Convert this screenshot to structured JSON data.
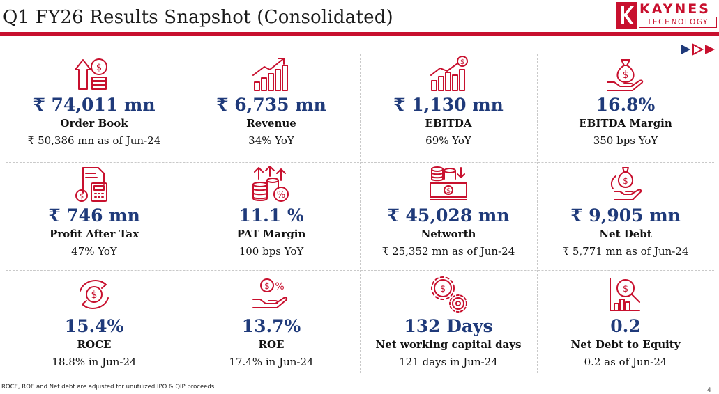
{
  "header": {
    "title": "Q1 FY26 Results Snapshot (Consolidated)",
    "logo_line1": "KAYNES",
    "logo_line2": "TECHNOLOGY"
  },
  "colors": {
    "accent": "#c8102e",
    "value": "#1f3a7a"
  },
  "metrics": [
    {
      "icon": "order-book-icon",
      "value": "₹ 74,011 mn",
      "label": "Order Book",
      "sub": "₹ 50,386 mn as of Jun-24"
    },
    {
      "icon": "revenue-growth-icon",
      "value": "₹ 6,735 mn",
      "label": "Revenue",
      "sub": "34% YoY"
    },
    {
      "icon": "ebitda-chart-icon",
      "value": "₹ 1,130 mn",
      "label": "EBITDA",
      "sub": "69% YoY"
    },
    {
      "icon": "money-bag-hand-icon",
      "value": "16.8%",
      "label": "EBITDA Margin",
      "sub": "350 bps YoY"
    },
    {
      "icon": "calculator-invoice-icon",
      "value": "₹ 746 mn",
      "label": "Profit After Tax",
      "sub": "47% YoY"
    },
    {
      "icon": "coins-percent-icon",
      "value": "11.1 %",
      "label": "PAT Margin",
      "sub": "100 bps YoY"
    },
    {
      "icon": "cash-stack-icon",
      "value": "₹  45,028 mn",
      "label": "Networth",
      "sub": "₹  25,352 mn as of Jun-24"
    },
    {
      "icon": "money-bag-debt-icon",
      "value": "₹  9,905 mn",
      "label": "Net Debt",
      "sub": "₹   5,771 mn as of Jun-24"
    },
    {
      "icon": "dollar-cycle-icon",
      "value": "15.4%",
      "label": "ROCE",
      "sub": "18.8% in Jun-24"
    },
    {
      "icon": "hand-dollar-percent-icon",
      "value": "13.7%",
      "label": "ROE",
      "sub": "17.4% in Jun-24"
    },
    {
      "icon": "gears-dollar-icon",
      "value": "132 Days",
      "label": "Net working capital days",
      "sub": "121 days in Jun-24"
    },
    {
      "icon": "magnifier-chart-icon",
      "value": "0.2",
      "label": "Net Debt to Equity",
      "sub": "0.2 as of Jun-24"
    }
  ],
  "footnote": "ROCE, ROE and Net debt  are adjusted for unutilized IPO & QIP proceeds.",
  "page_number": "4"
}
